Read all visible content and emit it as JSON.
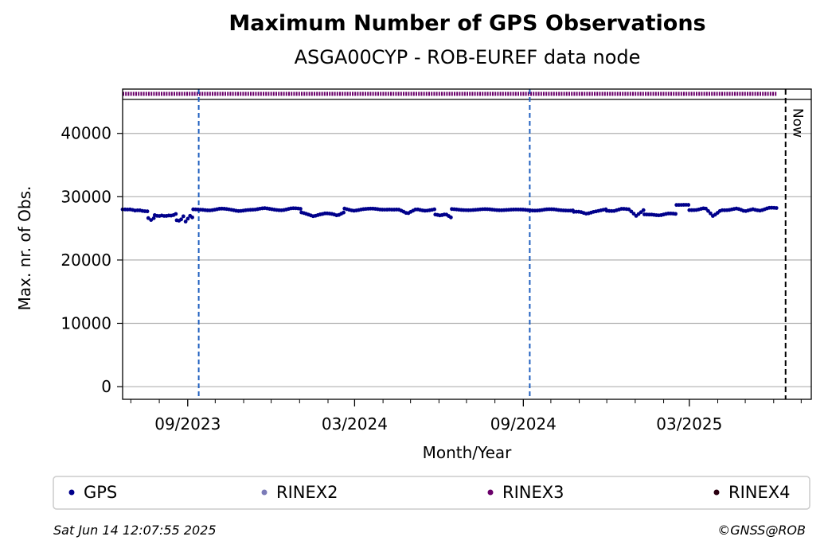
{
  "chart_data": {
    "type": "scatter",
    "title": "Maximum Number of GPS Observations",
    "subtitle": "ASGA00CYP - ROB-EUREF data node",
    "xlabel": "Month/Year",
    "ylabel": "Max. nr. of Obs.",
    "x_range": [
      "2023-06-22",
      "2025-07-12"
    ],
    "ylim": [
      -2000,
      47000
    ],
    "x_tick_labels": [
      {
        "date": "2023-09-01",
        "label": "09/2023"
      },
      {
        "date": "2024-03-01",
        "label": "03/2024"
      },
      {
        "date": "2024-09-01",
        "label": "09/2024"
      },
      {
        "date": "2025-03-01",
        "label": "03/2025"
      }
    ],
    "minor_ticks": [
      "2023-07-01",
      "2023-08-01",
      "2023-10-01",
      "2023-11-01",
      "2023-12-01",
      "2024-01-01",
      "2024-02-01",
      "2024-04-01",
      "2024-05-01",
      "2024-06-01",
      "2024-07-01",
      "2024-08-01",
      "2024-10-01",
      "2024-11-01",
      "2024-12-01",
      "2025-01-01",
      "2025-02-01",
      "2025-04-01",
      "2025-05-01",
      "2025-06-01",
      "2025-07-01"
    ],
    "y_ticks": [
      0,
      10000,
      20000,
      30000,
      40000
    ],
    "grid": "horizontal",
    "vertical_lines": [
      {
        "date": "2023-09-13",
        "style": "dashed",
        "color": "#1f5fbf"
      },
      {
        "date": "2024-09-08",
        "style": "dashed",
        "color": "#1f5fbf"
      }
    ],
    "now_line": {
      "date": "2025-06-14",
      "label": "Now"
    },
    "rinex3_band": {
      "y": 46200,
      "from": "2023-06-22",
      "to": "2025-06-04"
    },
    "series": [
      {
        "name": "GPS",
        "color": "#00008b",
        "segments": [
          {
            "from": "2023-06-22",
            "to": "2023-07-19",
            "values": [
              27900,
              27850,
              27900,
              27800,
              27950,
              27850,
              27800
            ]
          },
          {
            "from": "2023-07-20",
            "to": "2023-07-26",
            "values": [
              26600,
              26200,
              26300,
              26500
            ]
          },
          {
            "from": "2023-07-27",
            "to": "2023-08-19",
            "values": [
              27100,
              27000,
              27150,
              27050,
              27100,
              27000,
              27200
            ]
          },
          {
            "from": "2023-08-20",
            "to": "2023-09-06",
            "values": [
              26200,
              26100,
              26300,
              26800,
              26000,
              26500,
              27000,
              26800
            ]
          },
          {
            "from": "2023-09-07",
            "to": "2024-01-02",
            "values": [
              27900,
              28000,
              27950,
              28050,
              27900,
              27800,
              28000,
              27900,
              28100,
              28050,
              27950,
              28100,
              28000
            ]
          },
          {
            "from": "2024-01-03",
            "to": "2024-02-18",
            "values": [
              27400,
              27200,
              27000,
              27300,
              27400,
              27200,
              26900,
              27500
            ]
          },
          {
            "from": "2024-02-19",
            "to": "2024-05-27",
            "values": [
              28100,
              27900,
              28050,
              28000,
              27950,
              28100,
              28000,
              27200,
              28050,
              27900,
              28000
            ]
          },
          {
            "from": "2024-05-28",
            "to": "2024-06-14",
            "values": [
              27100,
              26900,
              27200,
              26800
            ]
          },
          {
            "from": "2024-06-15",
            "to": "2024-10-25",
            "values": [
              27950,
              28000,
              27900,
              27950,
              28000,
              27850,
              27900,
              28000,
              27800,
              27950
            ]
          },
          {
            "from": "2024-10-26",
            "to": "2024-11-30",
            "values": [
              27500,
              27600,
              27400,
              27700,
              27800,
              27900
            ]
          },
          {
            "from": "2024-12-01",
            "to": "2025-01-10",
            "values": [
              27900,
              27800,
              28000,
              27900,
              27000,
              28000
            ]
          },
          {
            "from": "2025-01-11",
            "to": "2025-02-14",
            "values": [
              27200,
              27300,
              27100,
              27250,
              27200
            ]
          },
          {
            "from": "2025-02-15",
            "to": "2025-02-28",
            "values": [
              28800,
              28600
            ]
          },
          {
            "from": "2025-03-01",
            "to": "2025-06-04",
            "values": [
              28000,
              27900,
              28100,
              26900,
              28000,
              27950,
              28050,
              27600,
              28100,
              27900,
              28200,
              28100
            ]
          }
        ]
      },
      {
        "name": "RINEX2",
        "color": "#7b7bb8",
        "segments": []
      },
      {
        "name": "RINEX3",
        "color": "#6a006a",
        "segments": []
      },
      {
        "name": "RINEX4",
        "color": "#2a0010",
        "segments": []
      }
    ]
  },
  "legend": [
    {
      "label": "GPS",
      "color": "#00008b"
    },
    {
      "label": "RINEX2",
      "color": "#7b7bb8"
    },
    {
      "label": "RINEX3",
      "color": "#6a006a"
    },
    {
      "label": "RINEX4",
      "color": "#2a0010"
    }
  ],
  "footer": {
    "timestamp": "Sat Jun 14 12:07:55 2025",
    "credit": "©GNSS@ROB"
  }
}
